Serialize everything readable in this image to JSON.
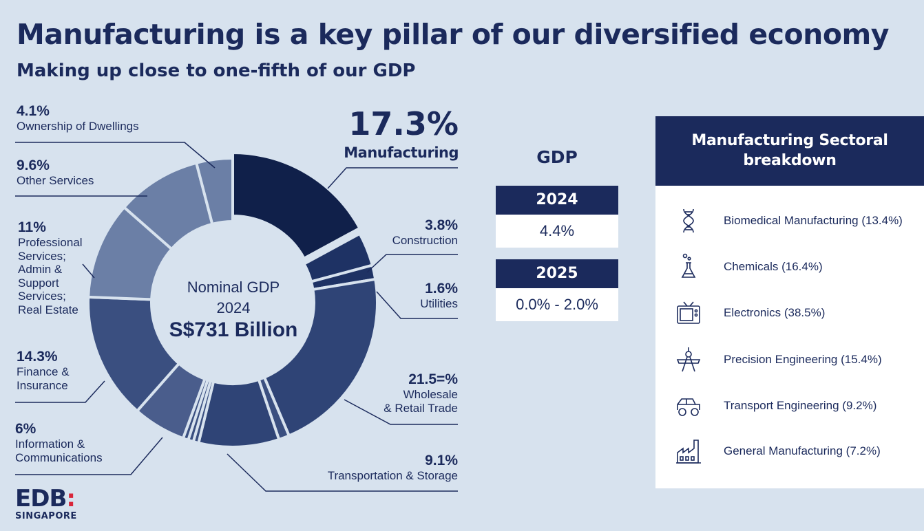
{
  "header": {
    "title": "Manufacturing is a key pillar of our diversified economy",
    "subtitle": "Making up close to one-fifth of our GDP"
  },
  "center": {
    "line1": "Nominal GDP",
    "line2": "2024",
    "line3": "S$731 Billion"
  },
  "colors": {
    "navy": "#1b2a5c",
    "background": "#d7e2ee",
    "manufacturing": "#10204a",
    "dark": "#1e3264",
    "mid": "#2f4476",
    "light": "#6b7fa6",
    "accent_red": "#d9263a"
  },
  "chart_data": {
    "type": "pie",
    "title": "Nominal GDP 2024",
    "start": "top",
    "direction": "clockwise",
    "slices": [
      {
        "label": "Manufacturing",
        "pct_text": "17.3%",
        "value": 17.3
      },
      {
        "label": "Construction",
        "pct_text": "3.8%",
        "value": 3.8
      },
      {
        "label": "Utilities",
        "pct_text": "1.6%",
        "value": 1.6
      },
      {
        "label": "Wholesale & Retail Trade",
        "pct_text": "21.5=%",
        "value": 21.5
      },
      {
        "label": "",
        "pct_text": "",
        "value": 1.2
      },
      {
        "label": "Transportation & Storage",
        "pct_text": "9.1%",
        "value": 9.1
      },
      {
        "label": "",
        "pct_text": "",
        "value": 0.6
      },
      {
        "label": "",
        "pct_text": "",
        "value": 0.6
      },
      {
        "label": "",
        "pct_text": "",
        "value": 0.6
      },
      {
        "label": "Information & Communications",
        "pct_text": "6%",
        "value": 6
      },
      {
        "label": "Finance & Insurance",
        "pct_text": "14.3%",
        "value": 14.3
      },
      {
        "label": "Professional Services; Admin & Support Services; Real Estate",
        "pct_text": "11%",
        "value": 11
      },
      {
        "label": "Other Services",
        "pct_text": "9.6%",
        "value": 9.6
      },
      {
        "label": "Ownership of Dwellings",
        "pct_text": "4.1%",
        "value": 4.1
      }
    ],
    "slice_colors": [
      "#10204a",
      "#1e3264",
      "#1e3264",
      "#2f4476",
      "#3a4f80",
      "#2f4476",
      "#3a4f80",
      "#3a4f80",
      "#3a4f80",
      "#4a5d8c",
      "#3a4f80",
      "#6b7fa6",
      "#6b7fa6",
      "#6b7fa6"
    ]
  },
  "labels": {
    "dwellings": {
      "pct": "4.1%",
      "name": "Ownership of Dwellings"
    },
    "other": {
      "pct": "9.6%",
      "name": "Other Services"
    },
    "professional": {
      "pct": "11%",
      "name1": "Professional",
      "name2": "Services;",
      "name3": "Admin &",
      "name4": "Support",
      "name5": "Services;",
      "name6": "Real Estate"
    },
    "finance": {
      "pct": "14.3%",
      "name1": "Finance &",
      "name2": "Insurance"
    },
    "info": {
      "pct": "6%",
      "name1": "Information &",
      "name2": "Communications"
    },
    "manufacturing": {
      "pct": "17.3%",
      "name": "Manufacturing"
    },
    "construction": {
      "pct": "3.8%",
      "name": "Construction"
    },
    "utilities": {
      "pct": "1.6%",
      "name": "Utilities"
    },
    "wholesale": {
      "pct": "21.5=%",
      "name1": "Wholesale",
      "name2": "& Retail Trade"
    },
    "transport": {
      "pct": "9.1%",
      "name": "Transportation & Storage"
    }
  },
  "gdp": {
    "heading": "GDP",
    "rows": [
      {
        "year": "2024",
        "value": "4.4%"
      },
      {
        "year": "2025",
        "value": "0.0% - 2.0%"
      }
    ]
  },
  "sectoral": {
    "title_line1": "Manufacturing Sectoral",
    "title_line2": "breakdown",
    "items": [
      {
        "label": "Biomedical Manufacturing (13.4%)",
        "icon": "dna-icon"
      },
      {
        "label": "Chemicals (16.4%)",
        "icon": "flask-icon"
      },
      {
        "label": "Electronics (38.5%)",
        "icon": "tv-icon"
      },
      {
        "label": "Precision Engineering (15.4%)",
        "icon": "compass-icon"
      },
      {
        "label": "Transport Engineering (9.2%)",
        "icon": "vehicle-icon"
      },
      {
        "label": "General Manufacturing (7.2%)",
        "icon": "factory-icon"
      }
    ]
  },
  "logo": {
    "main": "EDB",
    "dots": ":",
    "sub": "SINGAPORE"
  }
}
